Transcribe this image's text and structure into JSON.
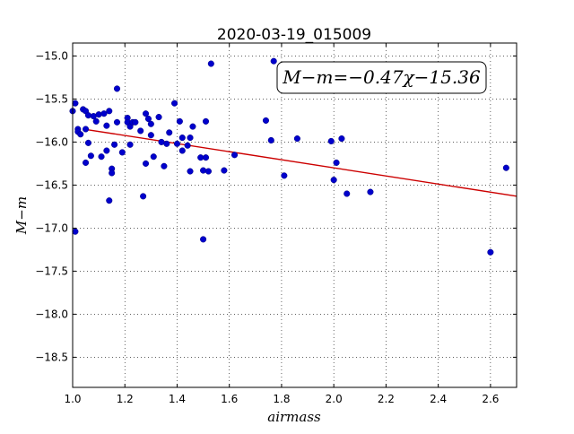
{
  "chart_data": {
    "type": "scatter",
    "title": "2020-03-19_015009",
    "xlabel": "airmass",
    "ylabel": "M−m",
    "xlim": [
      1.0,
      2.7
    ],
    "ylim": [
      -18.85,
      -14.85
    ],
    "x_ticks": [
      1.0,
      1.2,
      1.4,
      1.6,
      1.8,
      2.0,
      2.2,
      2.4,
      2.6
    ],
    "x_tick_labels": [
      "1.0",
      "1.2",
      "1.4",
      "1.6",
      "1.8",
      "2.0",
      "2.2",
      "2.4",
      "2.6"
    ],
    "y_ticks": [
      -15.0,
      -15.5,
      -16.0,
      -16.5,
      -17.0,
      -17.5,
      -18.0,
      -18.5
    ],
    "y_tick_labels": [
      "−15.0",
      "−15.5",
      "−16.0",
      "−16.5",
      "−17.0",
      "−17.5",
      "−18.0",
      "−18.5"
    ],
    "grid": true,
    "annotation": "M−m=−0.47χ−15.36",
    "annotation_position": "top-right",
    "fit_line": {
      "slope": -0.47,
      "intercept": -15.36,
      "x_range": [
        1.04,
        2.7
      ],
      "color": "#cc0000"
    },
    "marker_color": "#0000cc",
    "series": [
      {
        "points": [
          [
            1.0,
            -15.64
          ],
          [
            1.01,
            -15.55
          ],
          [
            1.01,
            -17.04
          ],
          [
            1.02,
            -15.85
          ],
          [
            1.02,
            -15.88
          ],
          [
            1.03,
            -15.91
          ],
          [
            1.04,
            -15.62
          ],
          [
            1.05,
            -15.64
          ],
          [
            1.05,
            -16.24
          ],
          [
            1.05,
            -15.85
          ],
          [
            1.06,
            -15.69
          ],
          [
            1.06,
            -16.01
          ],
          [
            1.07,
            -16.16
          ],
          [
            1.08,
            -15.7
          ],
          [
            1.09,
            -15.76
          ],
          [
            1.1,
            -15.68
          ],
          [
            1.11,
            -16.17
          ],
          [
            1.12,
            -15.67
          ],
          [
            1.13,
            -16.1
          ],
          [
            1.13,
            -15.81
          ],
          [
            1.14,
            -15.64
          ],
          [
            1.14,
            -16.68
          ],
          [
            1.15,
            -16.31
          ],
          [
            1.15,
            -16.36
          ],
          [
            1.16,
            -16.03
          ],
          [
            1.17,
            -15.77
          ],
          [
            1.17,
            -15.38
          ],
          [
            1.19,
            -16.12
          ],
          [
            1.21,
            -15.72
          ],
          [
            1.21,
            -15.77
          ],
          [
            1.22,
            -16.03
          ],
          [
            1.22,
            -15.82
          ],
          [
            1.23,
            -15.77
          ],
          [
            1.24,
            -15.77
          ],
          [
            1.26,
            -15.87
          ],
          [
            1.27,
            -16.63
          ],
          [
            1.28,
            -15.67
          ],
          [
            1.28,
            -16.25
          ],
          [
            1.29,
            -15.73
          ],
          [
            1.3,
            -15.92
          ],
          [
            1.3,
            -15.79
          ],
          [
            1.31,
            -16.17
          ],
          [
            1.33,
            -15.71
          ],
          [
            1.34,
            -16.0
          ],
          [
            1.35,
            -16.28
          ],
          [
            1.36,
            -16.02
          ],
          [
            1.37,
            -15.89
          ],
          [
            1.39,
            -15.55
          ],
          [
            1.4,
            -16.02
          ],
          [
            1.41,
            -15.76
          ],
          [
            1.42,
            -16.1
          ],
          [
            1.42,
            -15.95
          ],
          [
            1.44,
            -16.04
          ],
          [
            1.45,
            -16.34
          ],
          [
            1.45,
            -15.95
          ],
          [
            1.46,
            -15.82
          ],
          [
            1.49,
            -16.18
          ],
          [
            1.5,
            -16.33
          ],
          [
            1.5,
            -17.13
          ],
          [
            1.51,
            -15.76
          ],
          [
            1.51,
            -16.18
          ],
          [
            1.52,
            -16.34
          ],
          [
            1.53,
            -15.09
          ],
          [
            1.58,
            -16.33
          ],
          [
            1.62,
            -16.15
          ],
          [
            1.74,
            -15.75
          ],
          [
            1.76,
            -15.98
          ],
          [
            1.77,
            -15.06
          ],
          [
            1.81,
            -16.39
          ],
          [
            1.86,
            -15.96
          ],
          [
            1.99,
            -15.99
          ],
          [
            2.0,
            -16.44
          ],
          [
            2.01,
            -16.24
          ],
          [
            2.03,
            -15.96
          ],
          [
            2.05,
            -16.6
          ],
          [
            2.14,
            -16.58
          ],
          [
            2.6,
            -17.28
          ],
          [
            2.66,
            -16.3
          ]
        ]
      }
    ]
  }
}
